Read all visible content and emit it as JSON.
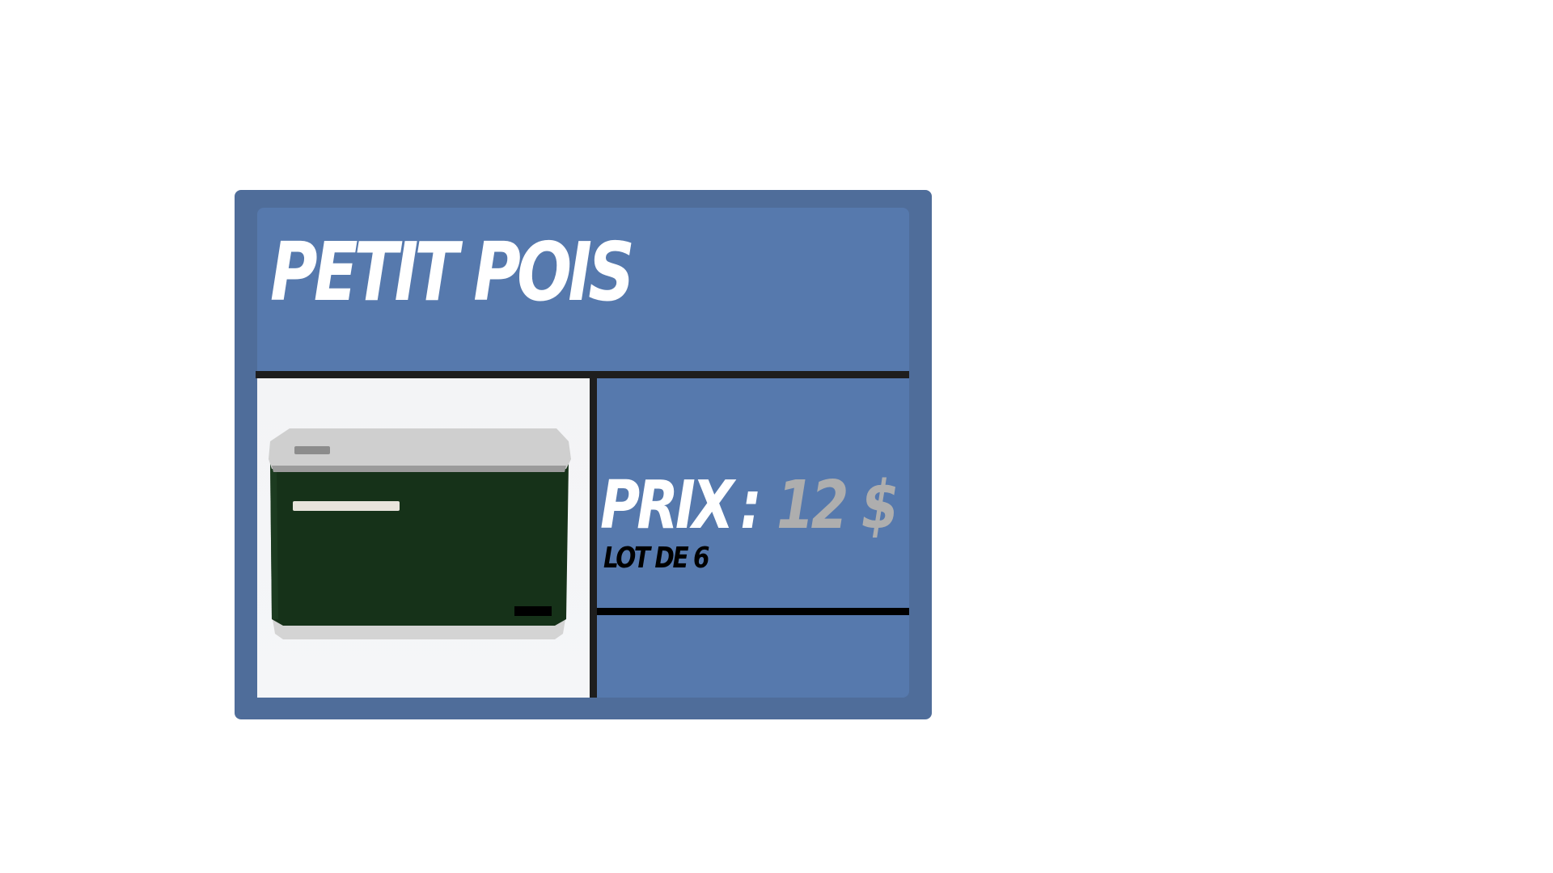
{
  "card": {
    "title": "PETIT POIS",
    "price_label": "PRIX",
    "price_separator": ":",
    "price_value": "12 $",
    "lot_label": "LOT DE 6"
  },
  "product_image": {
    "icon": "canned-peas-tin-icon",
    "colors": {
      "lid": "#cfcfcf",
      "body": "#163219",
      "stripe": "#e8e4dc"
    }
  },
  "colors": {
    "card_border": "#4f6d9a",
    "card_fill": "#5679ad",
    "divider": "#1e1e1e",
    "title_text": "#ffffff",
    "price_value_text": "#aeaeae",
    "lot_text": "#000000"
  }
}
